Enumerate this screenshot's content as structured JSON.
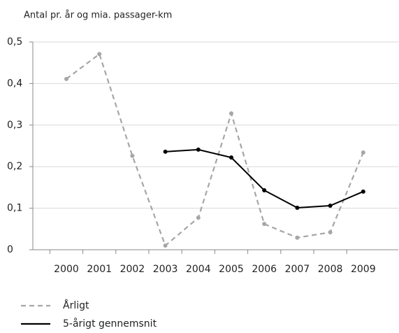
{
  "chart_data": {
    "type": "line",
    "title": "Antal pr. år og mia. passager-km",
    "categories": [
      "2000",
      "2001",
      "2002",
      "2003",
      "2004",
      "2005",
      "2006",
      "2007",
      "2008",
      "2009"
    ],
    "series": [
      {
        "name": "Årligt",
        "color": "#a6a6a6",
        "dashed": true,
        "values": [
          0.411,
          0.471,
          0.226,
          0.01,
          0.077,
          0.328,
          0.062,
          0.029,
          0.042,
          0.234
        ]
      },
      {
        "name": "5-årigt gennemsnit",
        "color": "#000000",
        "dashed": false,
        "values": [
          null,
          null,
          null,
          0.236,
          0.241,
          0.222,
          0.143,
          0.101,
          0.106,
          0.14
        ]
      }
    ],
    "ylim": [
      0,
      0.5
    ],
    "yticks": [
      0,
      {
        "value": 0.1,
        "label": "0,1"
      },
      {
        "value": 0.2,
        "label": "0,2"
      },
      {
        "value": 0.3,
        "label": "0,3"
      },
      {
        "value": 0.4,
        "label": "0,4"
      },
      {
        "value": 0.5,
        "label": "0,5"
      }
    ],
    "grid": true
  }
}
